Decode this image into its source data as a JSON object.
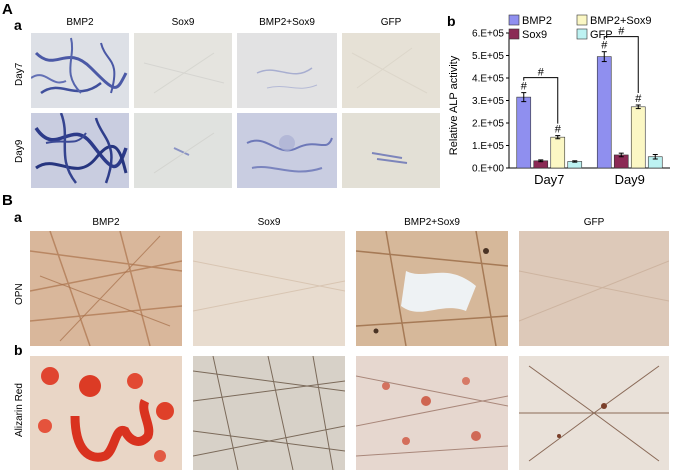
{
  "figure": {
    "panel_A": "A",
    "panel_A_sub_a": "a",
    "panel_A_sub_b": "b",
    "panel_B": "B",
    "panel_B_sub_a": "a",
    "panel_B_sub_b": "b",
    "A_columns": [
      "BMP2",
      "Sox9",
      "BMP2+Sox9",
      "GFP"
    ],
    "A_rows": [
      "Day7",
      "Day9"
    ],
    "B_columns": [
      "BMP2",
      "Sox9",
      "BMP2+Sox9",
      "GFP"
    ],
    "B_rows": [
      "OPN",
      "Alizarin Red"
    ]
  },
  "colors": {
    "bmp2": "#8f8fef",
    "sox9": "#8b2a55",
    "bmp2sox9": "#fbf7c4",
    "gfp": "#bdf2f2"
  },
  "chart_data": {
    "type": "bar",
    "categories": [
      "Day7",
      "Day9"
    ],
    "series": [
      {
        "name": "BMP2",
        "values": [
          315000,
          495000
        ],
        "errors": [
          20000,
          22000
        ]
      },
      {
        "name": "Sox9",
        "values": [
          32000,
          58000
        ],
        "errors": [
          4000,
          8000
        ]
      },
      {
        "name": "BMP2+Sox9",
        "values": [
          137000,
          272000
        ],
        "errors": [
          7000,
          8000
        ]
      },
      {
        "name": "GFP",
        "values": [
          29000,
          50000
        ],
        "errors": [
          3000,
          10000
        ]
      }
    ],
    "ylabel": "Relative ALP activity",
    "ylim": [
      0,
      600000
    ],
    "yticks": [
      "0.E+00",
      "1.E+05",
      "2.E+05",
      "3.E+05",
      "4.E+05",
      "5.E+05",
      "6.E+05"
    ],
    "significance_mark": "#",
    "legend": "top"
  }
}
